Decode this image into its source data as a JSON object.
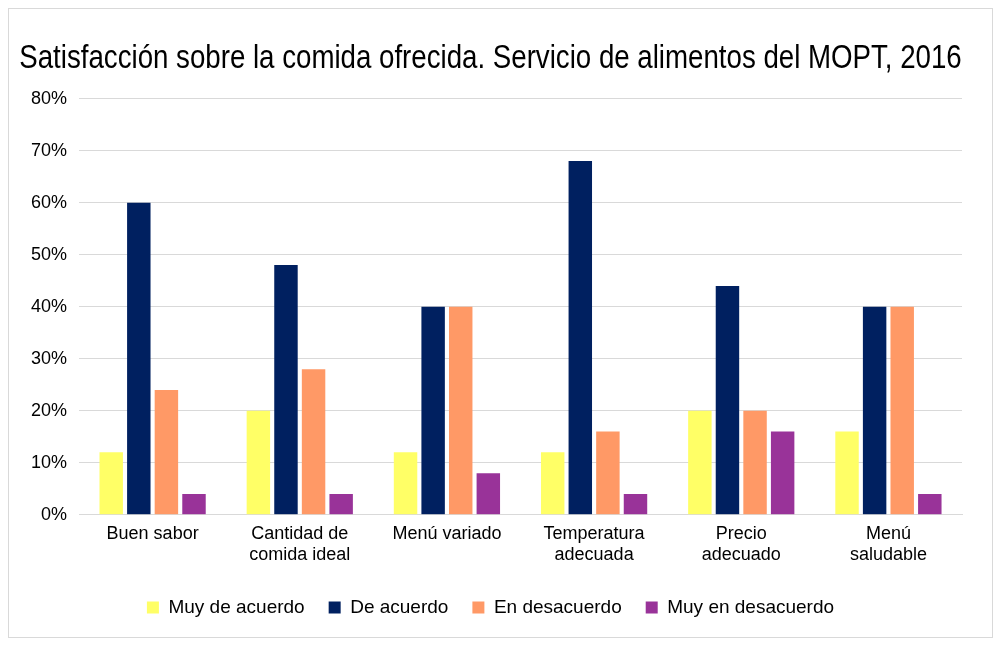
{
  "chart_data": {
    "type": "bar",
    "title": "Satisfacción sobre la comida ofrecida. Servicio de alimentos del MOPT, 2016",
    "categories": [
      [
        "Buen sabor"
      ],
      [
        "Cantidad de",
        "comida ideal"
      ],
      [
        "Menú variado"
      ],
      [
        "Temperatura",
        "adecuada"
      ],
      [
        "Precio",
        "adecuado"
      ],
      [
        "Menú",
        "saludable"
      ]
    ],
    "series": [
      {
        "name": "Muy de acuerdo",
        "color": "#ffff66",
        "values": [
          12,
          20,
          12,
          12,
          20,
          16
        ]
      },
      {
        "name": "De acuerdo",
        "color": "#002060",
        "values": [
          60,
          48,
          40,
          68,
          44,
          40
        ]
      },
      {
        "name": "En desacuerdo",
        "color": "#ff9966",
        "values": [
          24,
          28,
          40,
          16,
          20,
          40
        ]
      },
      {
        "name": "Muy en desacuerdo",
        "color": "#993399",
        "values": [
          4,
          4,
          8,
          4,
          16,
          4
        ]
      }
    ],
    "ylim": [
      0,
      80
    ],
    "yticks": [
      {
        "value": 0,
        "label": "0%"
      },
      {
        "value": 10,
        "label": "10%"
      },
      {
        "value": 20,
        "label": "20%"
      },
      {
        "value": 30,
        "label": "30%"
      },
      {
        "value": 40,
        "label": "40%"
      },
      {
        "value": 50,
        "label": "50%"
      },
      {
        "value": 60,
        "label": "60%"
      },
      {
        "value": 70,
        "label": "70%"
      },
      {
        "value": 80,
        "label": "80%"
      }
    ],
    "grid": "y",
    "legend": "bottom"
  }
}
